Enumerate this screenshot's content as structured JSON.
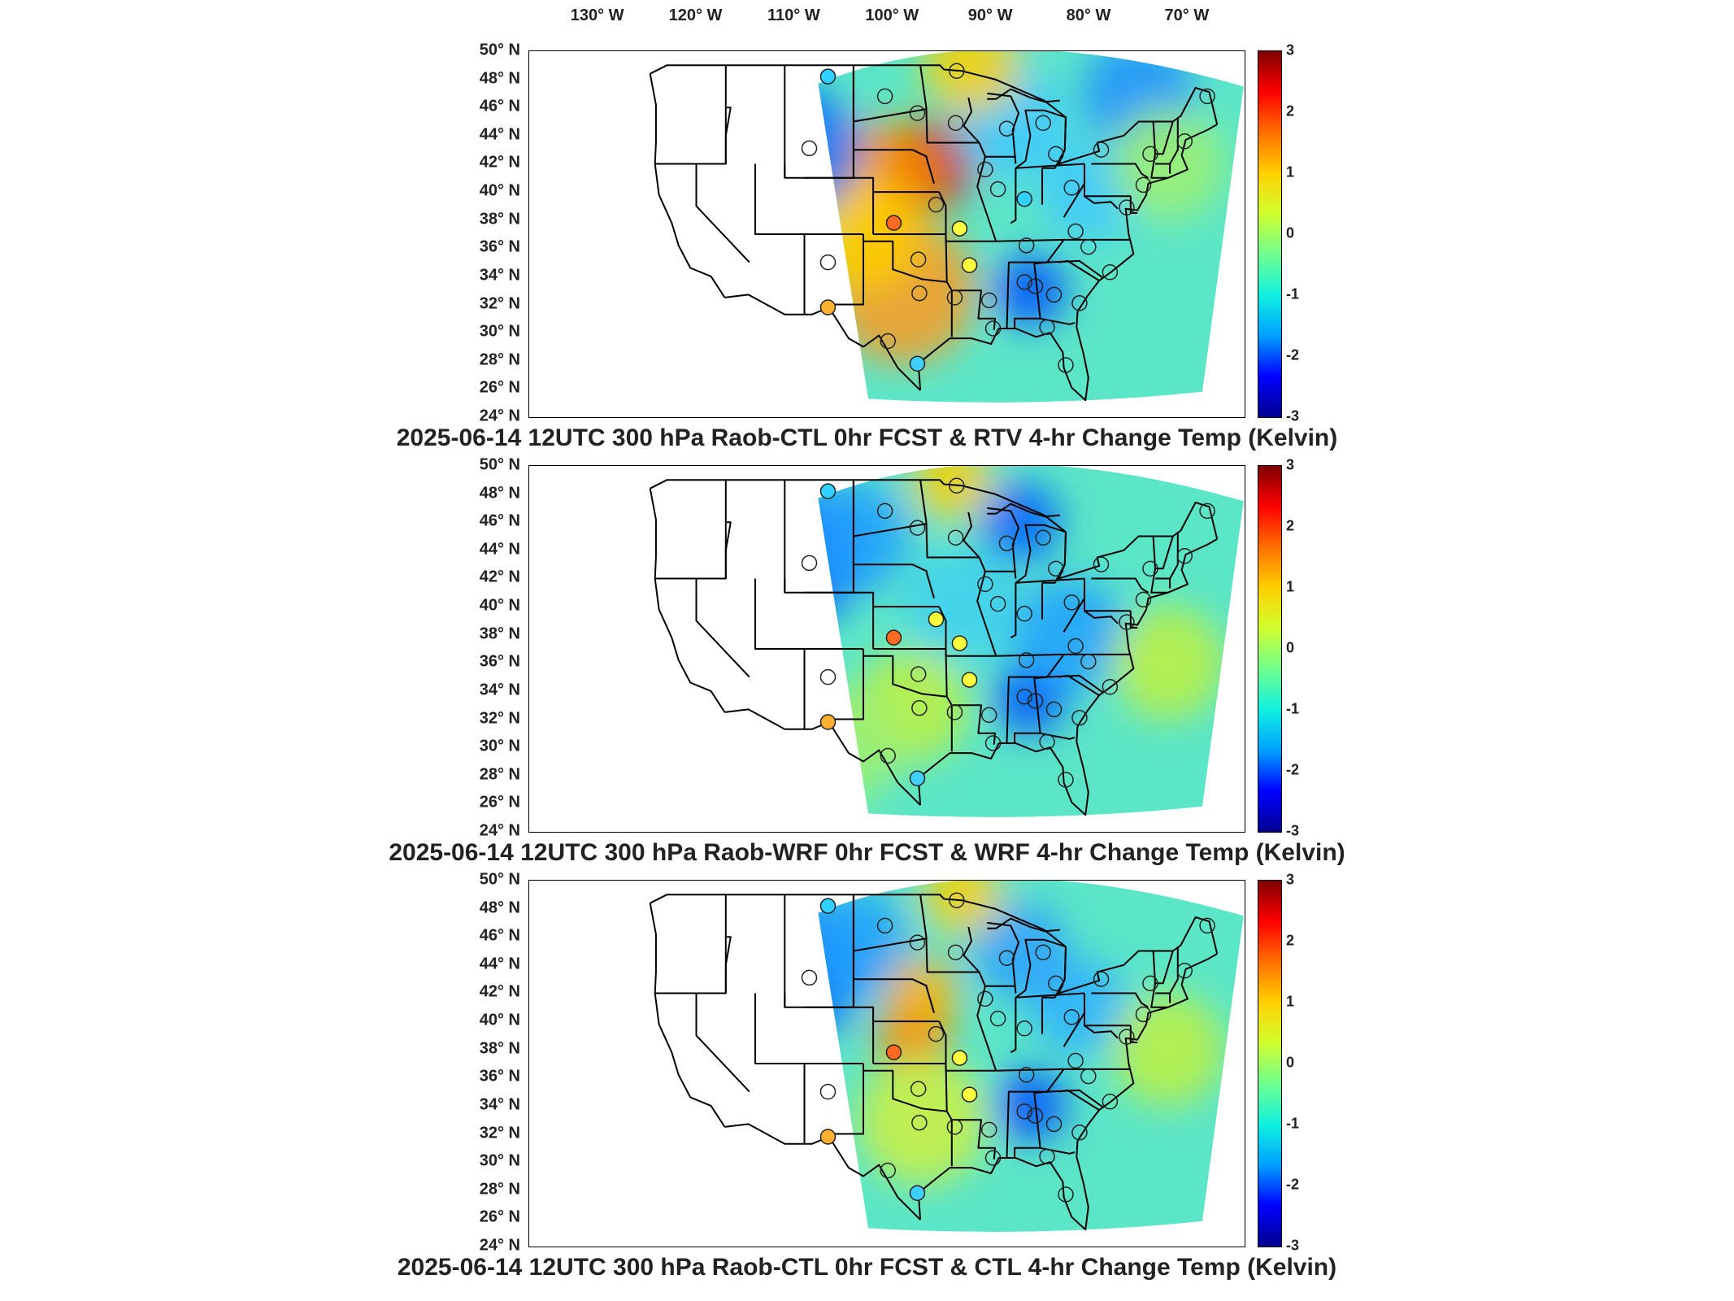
{
  "longitude_labels": [
    "130° W",
    "120° W",
    "110° W",
    "100° W",
    "90° W",
    "80° W",
    "70° W"
  ],
  "latitude_labels": [
    "50° N",
    "48° N",
    "46° N",
    "44° N",
    "42° N",
    "40° N",
    "38° N",
    "36° N",
    "34° N",
    "32° N",
    "30° N",
    "28° N",
    "26° N",
    "24° N"
  ],
  "colorbar": {
    "ticks": [
      "3",
      "2",
      "1",
      "0",
      "-1",
      "-2",
      "-3"
    ],
    "min": -3,
    "max": 3,
    "colors": [
      "#00008f",
      "#0000ff",
      "#00a0ff",
      "#10f0e0",
      "#6fff8f",
      "#d0ff30",
      "#ffd000",
      "#ff7000",
      "#ff0000",
      "#800000"
    ]
  },
  "panels": [
    {
      "title": "2025-06-14 12UTC 300 hPa Raob-CTL 0hr FCST & RTV 4-hr Change Temp (Kelvin)",
      "blobs": [
        {
          "lon": -96,
          "lat": 42,
          "r": 55,
          "color": "#d01010"
        },
        {
          "lon": -101,
          "lat": 41,
          "r": 70,
          "color": "#ff9000"
        },
        {
          "lon": -99,
          "lat": 33,
          "r": 90,
          "color": "#ff9a20"
        },
        {
          "lon": -103,
          "lat": 37,
          "r": 70,
          "color": "#ffd000"
        },
        {
          "lon": -110,
          "lat": 43,
          "r": 80,
          "color": "#0070ff"
        },
        {
          "lon": -86,
          "lat": 33,
          "r": 45,
          "color": "#0050ff"
        },
        {
          "lon": -80,
          "lat": 40,
          "r": 60,
          "color": "#40c8ff"
        },
        {
          "lon": -88,
          "lat": 45,
          "r": 70,
          "color": "#40c8ff"
        },
        {
          "lon": -75,
          "lat": 47,
          "r": 70,
          "color": "#2090ff"
        },
        {
          "lon": -92,
          "lat": 49,
          "r": 60,
          "color": "#ffd000"
        },
        {
          "lon": -72,
          "lat": 42,
          "r": 70,
          "color": "#a0f070"
        }
      ]
    },
    {
      "title": "2025-06-14 12UTC 300 hPa Raob-WRF 0hr FCST & WRF 4-hr Change Temp (Kelvin)",
      "blobs": [
        {
          "lon": -110,
          "lat": 43.5,
          "r": 85,
          "color": "#0050ff"
        },
        {
          "lon": -104,
          "lat": 45,
          "r": 70,
          "color": "#20a0ff"
        },
        {
          "lon": -86,
          "lat": 33.5,
          "r": 45,
          "color": "#0050ff"
        },
        {
          "lon": -87,
          "lat": 46,
          "r": 50,
          "color": "#0060ff"
        },
        {
          "lon": -82,
          "lat": 38,
          "r": 70,
          "color": "#20a0ff"
        },
        {
          "lon": -93,
          "lat": 40,
          "r": 70,
          "color": "#40d0f0"
        },
        {
          "lon": -98,
          "lat": 33,
          "r": 70,
          "color": "#c0f040"
        },
        {
          "lon": -94,
          "lat": 49,
          "r": 50,
          "color": "#ffd000"
        },
        {
          "lon": -72,
          "lat": 36,
          "r": 70,
          "color": "#c0f040"
        },
        {
          "lon": -105,
          "lat": 30,
          "r": 70,
          "color": "#a0f070"
        }
      ]
    },
    {
      "title": "2025-06-14 12UTC 300 hPa Raob-CTL 0hr FCST & CTL 4-hr Change Temp (Kelvin)",
      "blobs": [
        {
          "lon": -110,
          "lat": 43.5,
          "r": 85,
          "color": "#0060ff"
        },
        {
          "lon": -104,
          "lat": 45.5,
          "r": 70,
          "color": "#20a0ff"
        },
        {
          "lon": -98,
          "lat": 39,
          "r": 45,
          "color": "#ff8000"
        },
        {
          "lon": -97,
          "lat": 42,
          "r": 45,
          "color": "#ffb000"
        },
        {
          "lon": -86,
          "lat": 34,
          "r": 45,
          "color": "#0050ff"
        },
        {
          "lon": -81,
          "lat": 41,
          "r": 60,
          "color": "#30b0ff"
        },
        {
          "lon": -87,
          "lat": 45,
          "r": 60,
          "color": "#30a0ff"
        },
        {
          "lon": -93,
          "lat": 49,
          "r": 50,
          "color": "#ffd000"
        },
        {
          "lon": -97,
          "lat": 33,
          "r": 80,
          "color": "#d0f040"
        },
        {
          "lon": -72,
          "lat": 38,
          "r": 70,
          "color": "#c0f040"
        }
      ]
    }
  ],
  "stations": [
    {
      "lon": -106.6,
      "lat": 48.2,
      "c": [
        "#30d0ff",
        "#30d0ff",
        "#30d0ff"
      ]
    },
    {
      "lon": -93.5,
      "lat": 48.6,
      "c": [
        "none",
        "none",
        "none"
      ]
    },
    {
      "lon": -100.8,
      "lat": 46.8,
      "c": [
        "none",
        "none",
        "none"
      ]
    },
    {
      "lon": -97.5,
      "lat": 45.6,
      "c": [
        "none",
        "none",
        "none"
      ]
    },
    {
      "lon": -93.6,
      "lat": 44.9,
      "c": [
        "none",
        "none",
        "none"
      ]
    },
    {
      "lon": -88.4,
      "lat": 44.5,
      "c": [
        "none",
        "none",
        "none"
      ]
    },
    {
      "lon": -84.7,
      "lat": 44.9,
      "c": [
        "none",
        "none",
        "none"
      ]
    },
    {
      "lon": -83.4,
      "lat": 42.7,
      "c": [
        "none",
        "none",
        "none"
      ]
    },
    {
      "lon": -78.8,
      "lat": 43.0,
      "c": [
        "none",
        "none",
        "none"
      ]
    },
    {
      "lon": -73.8,
      "lat": 42.7,
      "c": [
        "none",
        "none",
        "none"
      ]
    },
    {
      "lon": -108.5,
      "lat": 43.1,
      "c": [
        "none",
        "none",
        "none"
      ]
    },
    {
      "lon": -90.6,
      "lat": 41.6,
      "c": [
        "none",
        "none",
        "none"
      ]
    },
    {
      "lon": -89.3,
      "lat": 40.2,
      "c": [
        "none",
        "none",
        "none"
      ]
    },
    {
      "lon": -86.6,
      "lat": 39.5,
      "c": [
        "#30d0ff",
        "none",
        "none"
      ]
    },
    {
      "lon": -81.8,
      "lat": 40.3,
      "c": [
        "none",
        "none",
        "none"
      ]
    },
    {
      "lon": -74.5,
      "lat": 40.5,
      "c": [
        "none",
        "none",
        "none"
      ]
    },
    {
      "lon": -76.2,
      "lat": 38.9,
      "c": [
        "none",
        "none",
        "none"
      ]
    },
    {
      "lon": -99.9,
      "lat": 37.8,
      "c": [
        "#ff6a20",
        "#ff6a20",
        "#ff6a20"
      ]
    },
    {
      "lon": -95.6,
      "lat": 39.1,
      "c": [
        "none",
        "#ffff40",
        "none"
      ]
    },
    {
      "lon": -93.2,
      "lat": 37.4,
      "c": [
        "#ffff40",
        "#ffff40",
        "#ffff40"
      ]
    },
    {
      "lon": -86.4,
      "lat": 36.2,
      "c": [
        "none",
        "none",
        "none"
      ]
    },
    {
      "lon": -81.4,
      "lat": 37.2,
      "c": [
        "none",
        "none",
        "none"
      ]
    },
    {
      "lon": -80.1,
      "lat": 36.1,
      "c": [
        "none",
        "none",
        "none"
      ]
    },
    {
      "lon": -106.6,
      "lat": 35.0,
      "c": [
        "none",
        "none",
        "none"
      ]
    },
    {
      "lon": -97.4,
      "lat": 35.2,
      "c": [
        "none",
        "none",
        "none"
      ]
    },
    {
      "lon": -92.2,
      "lat": 34.8,
      "c": [
        "#ffff40",
        "#ffff40",
        "#ffff40"
      ]
    },
    {
      "lon": -85.5,
      "lat": 33.3,
      "c": [
        "none",
        "none",
        "none"
      ]
    },
    {
      "lon": -86.6,
      "lat": 33.6,
      "c": [
        "none",
        "none",
        "none"
      ]
    },
    {
      "lon": -83.6,
      "lat": 32.7,
      "c": [
        "none",
        "none",
        "none"
      ]
    },
    {
      "lon": -81.0,
      "lat": 32.1,
      "c": [
        "none",
        "none",
        "none"
      ]
    },
    {
      "lon": -97.3,
      "lat": 32.8,
      "c": [
        "none",
        "none",
        "none"
      ]
    },
    {
      "lon": -93.7,
      "lat": 32.5,
      "c": [
        "none",
        "none",
        "none"
      ]
    },
    {
      "lon": -90.2,
      "lat": 32.3,
      "c": [
        "none",
        "none",
        "none"
      ]
    },
    {
      "lon": -106.6,
      "lat": 31.8,
      "c": [
        "#ffb030",
        "#ffb030",
        "#ffb030"
      ]
    },
    {
      "lon": -100.5,
      "lat": 29.4,
      "c": [
        "none",
        "none",
        "none"
      ]
    },
    {
      "lon": -97.5,
      "lat": 27.8,
      "c": [
        "#40d0ff",
        "#40d0ff",
        "#40d0ff"
      ]
    },
    {
      "lon": -89.8,
      "lat": 30.3,
      "c": [
        "none",
        "none",
        "none"
      ]
    },
    {
      "lon": -84.3,
      "lat": 30.4,
      "c": [
        "none",
        "none",
        "none"
      ]
    },
    {
      "lon": -82.4,
      "lat": 27.7,
      "c": [
        "none",
        "none",
        "none"
      ]
    },
    {
      "lon": -77.9,
      "lat": 34.3,
      "c": [
        "none",
        "none",
        "none"
      ]
    },
    {
      "lon": -70.3,
      "lat": 43.6,
      "c": [
        "none",
        "none",
        "none"
      ]
    },
    {
      "lon": -68.0,
      "lat": 46.8,
      "c": [
        "none",
        "none",
        "none"
      ]
    }
  ]
}
